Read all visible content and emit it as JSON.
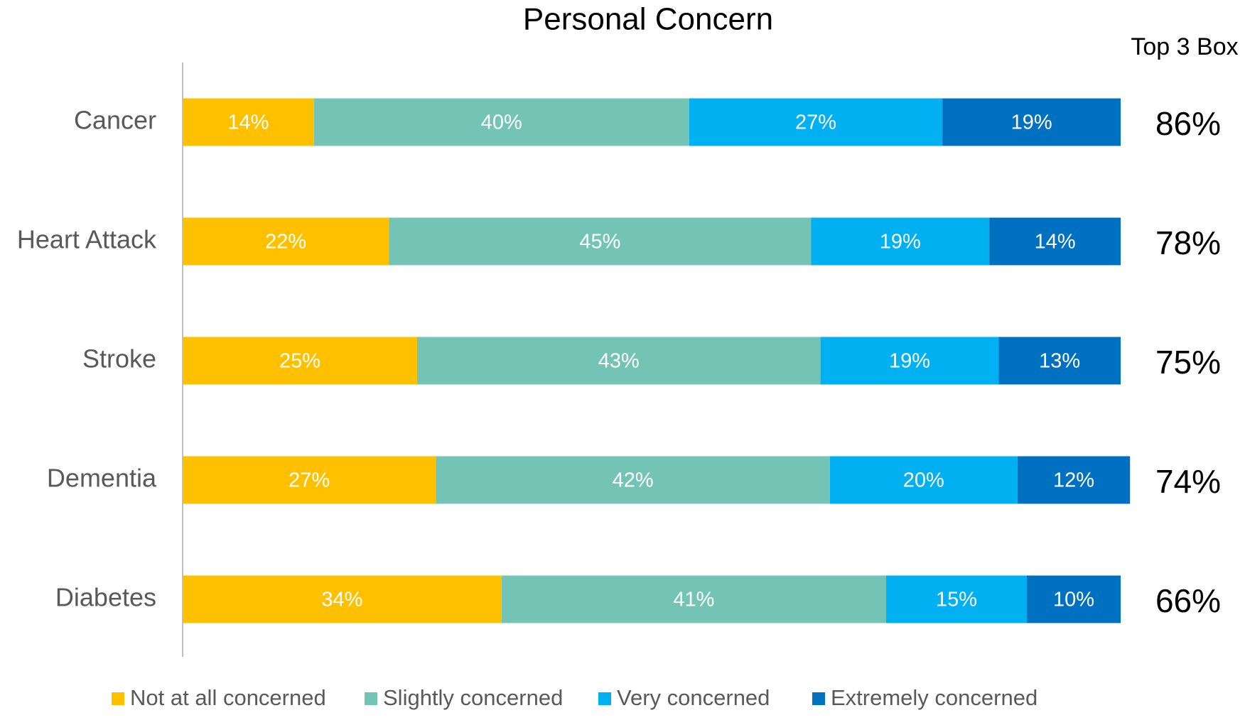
{
  "chart_data": {
    "type": "stacked_barh",
    "title": "Personal Concern",
    "categories": [
      "Cancer",
      "Heart Attack",
      "Stroke",
      "Dementia",
      "Diabetes"
    ],
    "series": [
      {
        "name": "Not at all concerned",
        "color": "#FFC000",
        "values": [
          14,
          22,
          25,
          27,
          34
        ],
        "value_labels": [
          "14%",
          "22%",
          "25%",
          "27%",
          "34%"
        ]
      },
      {
        "name": "Slightly concerned",
        "color": "#74C4B6",
        "values": [
          40,
          45,
          43,
          42,
          41
        ],
        "value_labels": [
          "40%",
          "45%",
          "43%",
          "42%",
          "41%"
        ]
      },
      {
        "name": "Very concerned",
        "color": "#00B0F0",
        "values": [
          27,
          19,
          19,
          20,
          15
        ],
        "value_labels": [
          "27%",
          "19%",
          "19%",
          "20%",
          "15%"
        ]
      },
      {
        "name": "Extremely concerned",
        "color": "#0070C0",
        "values": [
          19,
          14,
          13,
          12,
          10
        ],
        "value_labels": [
          "19%",
          "14%",
          "13%",
          "12%",
          "10%"
        ]
      }
    ],
    "xlim": [
      0,
      100
    ],
    "top_3_box": {
      "label": "Top 3 Box",
      "values": [
        86,
        78,
        75,
        74,
        66
      ],
      "value_labels": [
        "86%",
        "78%",
        "75%",
        "74%",
        "66%"
      ]
    },
    "legend": "bottom"
  }
}
